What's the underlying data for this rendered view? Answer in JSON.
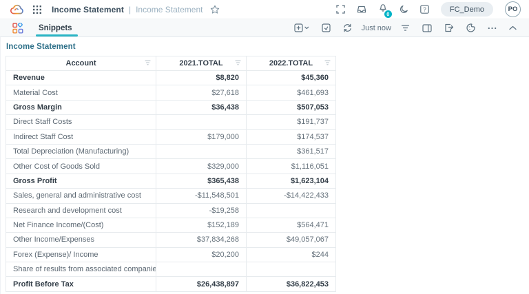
{
  "colors": {
    "accent": "#2ab5c5",
    "badge": "#00b3c7",
    "section-title": "#2e7089",
    "logo-red": "#e2574c",
    "logo-orange": "#f0a12f",
    "logo-blue": "#4a7fe0"
  },
  "topbar": {
    "page_title": "Income Statement",
    "separator": "|",
    "page_subtitle": "Income Statement",
    "notification_count": "0",
    "workspace_label": "FC_Demo",
    "avatar_initials": "PO",
    "help_glyph": "?"
  },
  "tabbar": {
    "active_tab": "Snippets",
    "refresh_status": "Just now"
  },
  "widget": {
    "title": "Income Statement"
  },
  "table": {
    "columns": [
      "Account",
      "2021.TOTAL",
      "2022.TOTAL"
    ],
    "rows": [
      {
        "account": "Revenue",
        "y2021": "$8,820",
        "y2022": "$45,360",
        "bold": true
      },
      {
        "account": "Material Cost",
        "y2021": "$27,618",
        "y2022": "$461,693",
        "bold": false
      },
      {
        "account": "Gross Margin",
        "y2021": "$36,438",
        "y2022": "$507,053",
        "bold": true
      },
      {
        "account": "Direct Staff Costs",
        "y2021": "",
        "y2022": "$191,737",
        "bold": false
      },
      {
        "account": "Indirect Staff Cost",
        "y2021": "$179,000",
        "y2022": "$174,537",
        "bold": false
      },
      {
        "account": "Total Depreciation (Manufacturing)",
        "y2021": "",
        "y2022": "$361,517",
        "bold": false
      },
      {
        "account": "Other Cost of Goods Sold",
        "y2021": "$329,000",
        "y2022": "$1,116,051",
        "bold": false
      },
      {
        "account": "Gross Profit",
        "y2021": "$365,438",
        "y2022": "$1,623,104",
        "bold": true
      },
      {
        "account": "Sales, general and administrative cost",
        "y2021": "-$11,548,501",
        "y2022": "-$14,422,433",
        "bold": false
      },
      {
        "account": "Research and development cost",
        "y2021": "-$19,258",
        "y2022": "",
        "bold": false
      },
      {
        "account": "Net Finance Income/(Cost)",
        "y2021": "$152,189",
        "y2022": "$564,471",
        "bold": false
      },
      {
        "account": "Other Income/Expenses",
        "y2021": "$37,834,268",
        "y2022": "$49,057,067",
        "bold": false
      },
      {
        "account": "Forex (Expense)/ Income",
        "y2021": "$20,200",
        "y2022": "$244",
        "bold": false
      },
      {
        "account": "Share of results from associated companies",
        "y2021": "",
        "y2022": "",
        "bold": false
      },
      {
        "account": "Profit Before Tax",
        "y2021": "$26,438,897",
        "y2022": "$36,822,453",
        "bold": true
      }
    ]
  },
  "icons": {
    "cloud-logo": "gradient cloud outline",
    "apps-grid-icon": "3x3 dot grid",
    "star-icon": "star outline",
    "fullscreen-icon": "corner brackets",
    "inbox-icon": "inbox tray",
    "bell-icon": "notification bell with count badge",
    "moon-icon": "crescent moon",
    "help-icon": "question mark in square",
    "snippets-icon": "four colored tiles, one rotated",
    "add-widget-icon": "square with plus and chevron-down",
    "snapshot-icon": "square with inner box",
    "refresh-icon": "circular arrows",
    "filter-icon": "three shrinking lines",
    "panel-icon": "layout with right pane",
    "export-icon": "page with outgoing arrow",
    "theme-icon": "color wheel circle",
    "more-icon": "ellipsis",
    "collapse-icon": "chevron up",
    "column-filter-icon": "three shrinking lines"
  }
}
